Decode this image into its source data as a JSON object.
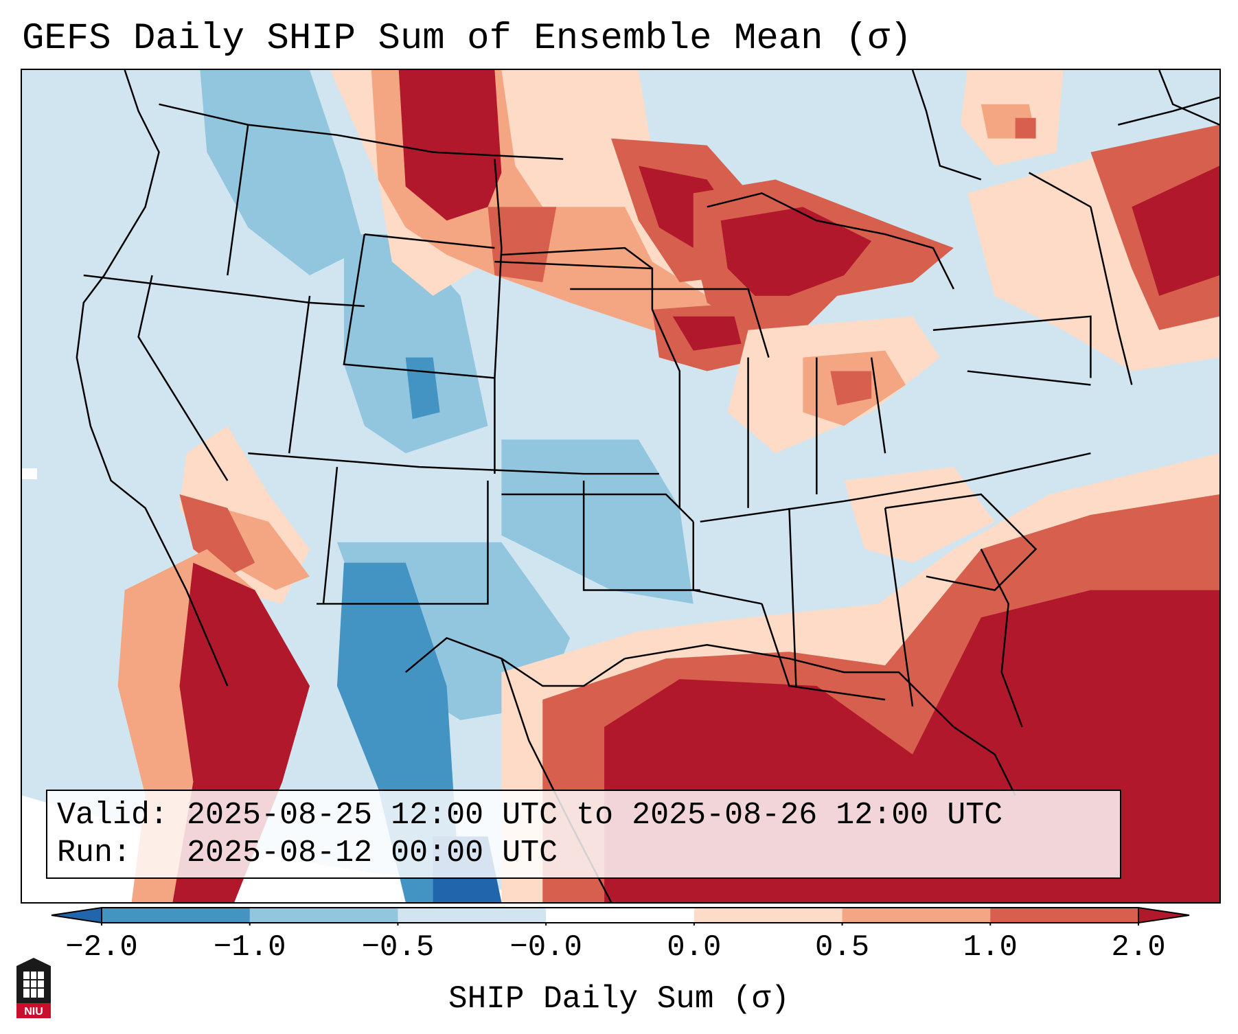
{
  "title": "GEFS Daily SHIP Sum of Ensemble Mean (σ)",
  "info": {
    "valid_label": "Valid:",
    "valid_value": "2025-08-25 12:00 UTC to 2025-08-26 12:00 UTC",
    "run_label": "Run:",
    "run_value": "2025-08-12 00:00 UTC"
  },
  "colorbar": {
    "label": "SHIP Daily Sum (σ)",
    "ticks": [
      "−2.0",
      "−1.0",
      "−0.5",
      "−0.0",
      "0.0",
      "0.5",
      "1.0",
      "2.0"
    ],
    "colors": [
      "#2166ac",
      "#4393c3",
      "#92c5de",
      "#d1e5f0",
      "#ffffff",
      "#fddbc7",
      "#f4a582",
      "#d6604d",
      "#b2182b"
    ]
  },
  "map_colors": {
    "strong_neg": "#2166ac",
    "neg": "#4393c3",
    "mild_neg": "#92c5de",
    "slight_neg": "#d1e5f0",
    "slight_pos": "#fddbc7",
    "mild_pos": "#f4a582",
    "pos": "#d6604d",
    "strong_pos": "#b2182b"
  },
  "logo": {
    "text": "NIU"
  }
}
